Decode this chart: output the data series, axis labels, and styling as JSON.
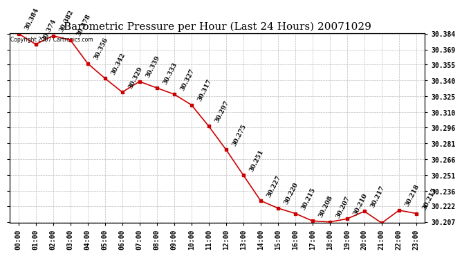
{
  "title": "Barometric Pressure per Hour (Last 24 Hours) 20071029",
  "copyright": "Copyright 2007 Cartronics.com",
  "hours": [
    "00:00",
    "01:00",
    "02:00",
    "03:00",
    "04:00",
    "05:00",
    "06:00",
    "07:00",
    "08:00",
    "09:00",
    "10:00",
    "11:00",
    "12:00",
    "13:00",
    "14:00",
    "15:00",
    "16:00",
    "17:00",
    "18:00",
    "19:00",
    "20:00",
    "21:00",
    "22:00",
    "23:00"
  ],
  "values": [
    30.384,
    30.374,
    30.382,
    30.378,
    30.356,
    30.342,
    30.329,
    30.339,
    30.333,
    30.327,
    30.317,
    30.297,
    30.275,
    30.251,
    30.227,
    30.22,
    30.215,
    30.208,
    30.207,
    30.21,
    30.217,
    30.206,
    30.218,
    30.215
  ],
  "ylim_min": 30.207,
  "ylim_max": 30.384,
  "yticks": [
    30.207,
    30.222,
    30.236,
    30.251,
    30.266,
    30.281,
    30.296,
    30.31,
    30.325,
    30.34,
    30.355,
    30.369,
    30.384
  ],
  "line_color": "#cc0000",
  "marker_color": "#cc0000",
  "bg_color": "#ffffff",
  "grid_color": "#bbbbbb",
  "title_fontsize": 11,
  "label_fontsize": 7,
  "annotation_fontsize": 6.5,
  "copyright_fontsize": 5.5
}
